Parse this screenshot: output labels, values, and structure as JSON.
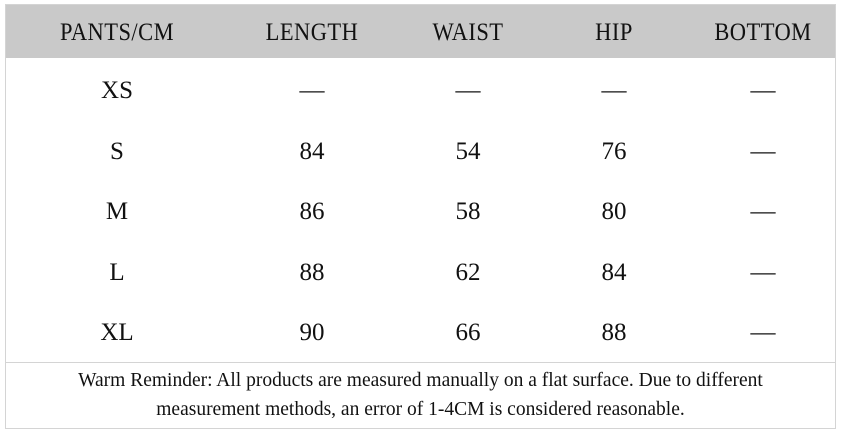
{
  "table": {
    "header": [
      "PANTS/CM",
      "LENGTH",
      "WAIST",
      "HIP",
      "BOTTOM"
    ],
    "rows": [
      [
        "XS",
        "—",
        "—",
        "—",
        "—"
      ],
      [
        "S",
        84,
        54,
        76,
        "—"
      ],
      [
        "M",
        86,
        58,
        80,
        "—"
      ],
      [
        "L",
        88,
        62,
        84,
        "—"
      ],
      [
        "XL",
        90,
        66,
        88,
        "—"
      ]
    ],
    "note": [
      "Warm Reminder: All products are measured manually on a flat surface. Due to different",
      "measurement methods, an error of 1-4CM is considered reasonable."
    ]
  }
}
